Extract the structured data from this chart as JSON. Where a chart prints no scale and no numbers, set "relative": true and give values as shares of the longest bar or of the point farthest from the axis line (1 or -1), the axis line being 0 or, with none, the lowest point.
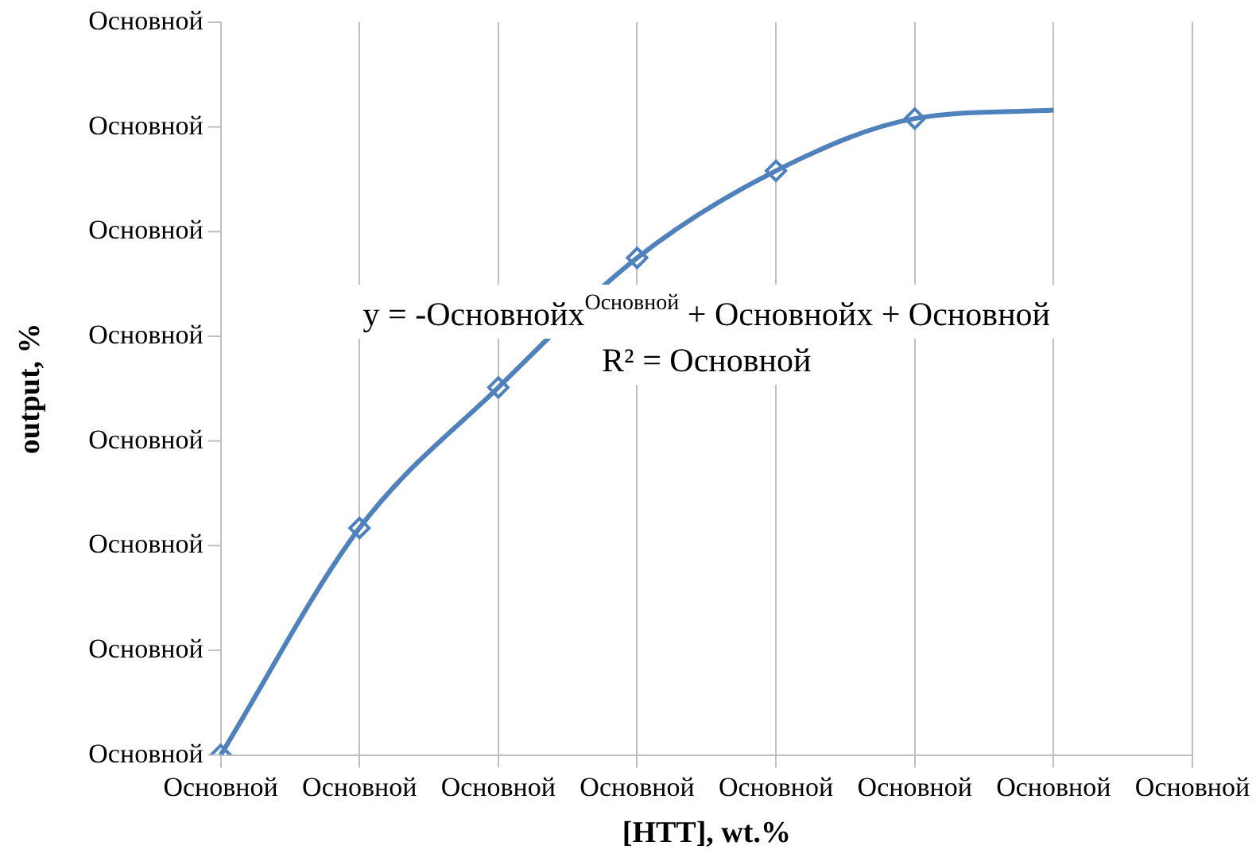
{
  "chart_data": {
    "type": "scatter",
    "relative": true,
    "xlabel": "[HTT], wt.%",
    "ylabel": "output, %",
    "categories": [
      "Основной",
      "Основной",
      "Основной",
      "Основной",
      "Основной",
      "Основной",
      "Основной",
      "Основной"
    ],
    "series": [
      {
        "type": "line",
        "color": "#4f81bd",
        "marker": "none",
        "values": [
          0,
          0.352,
          0.57,
          0.771,
          0.906,
          0.987,
          1,
          null
        ]
      },
      {
        "type": "scatter",
        "color": "#4f81bd",
        "marker": "diamond",
        "values": [
          0,
          0.352,
          0.57,
          0.771,
          0.906,
          0.987,
          null,
          null
        ]
      }
    ],
    "annotations": [
      "y = -Основнойx$^{Основной}$ + Основнойx + Основной",
      "R² = Основной",
      "Основной",
      "Основной",
      "Основной",
      "Основной",
      "Основной",
      "Основной",
      "Основной",
      "Основной"
    ],
    "grid": "x",
    "legend": false
  }
}
